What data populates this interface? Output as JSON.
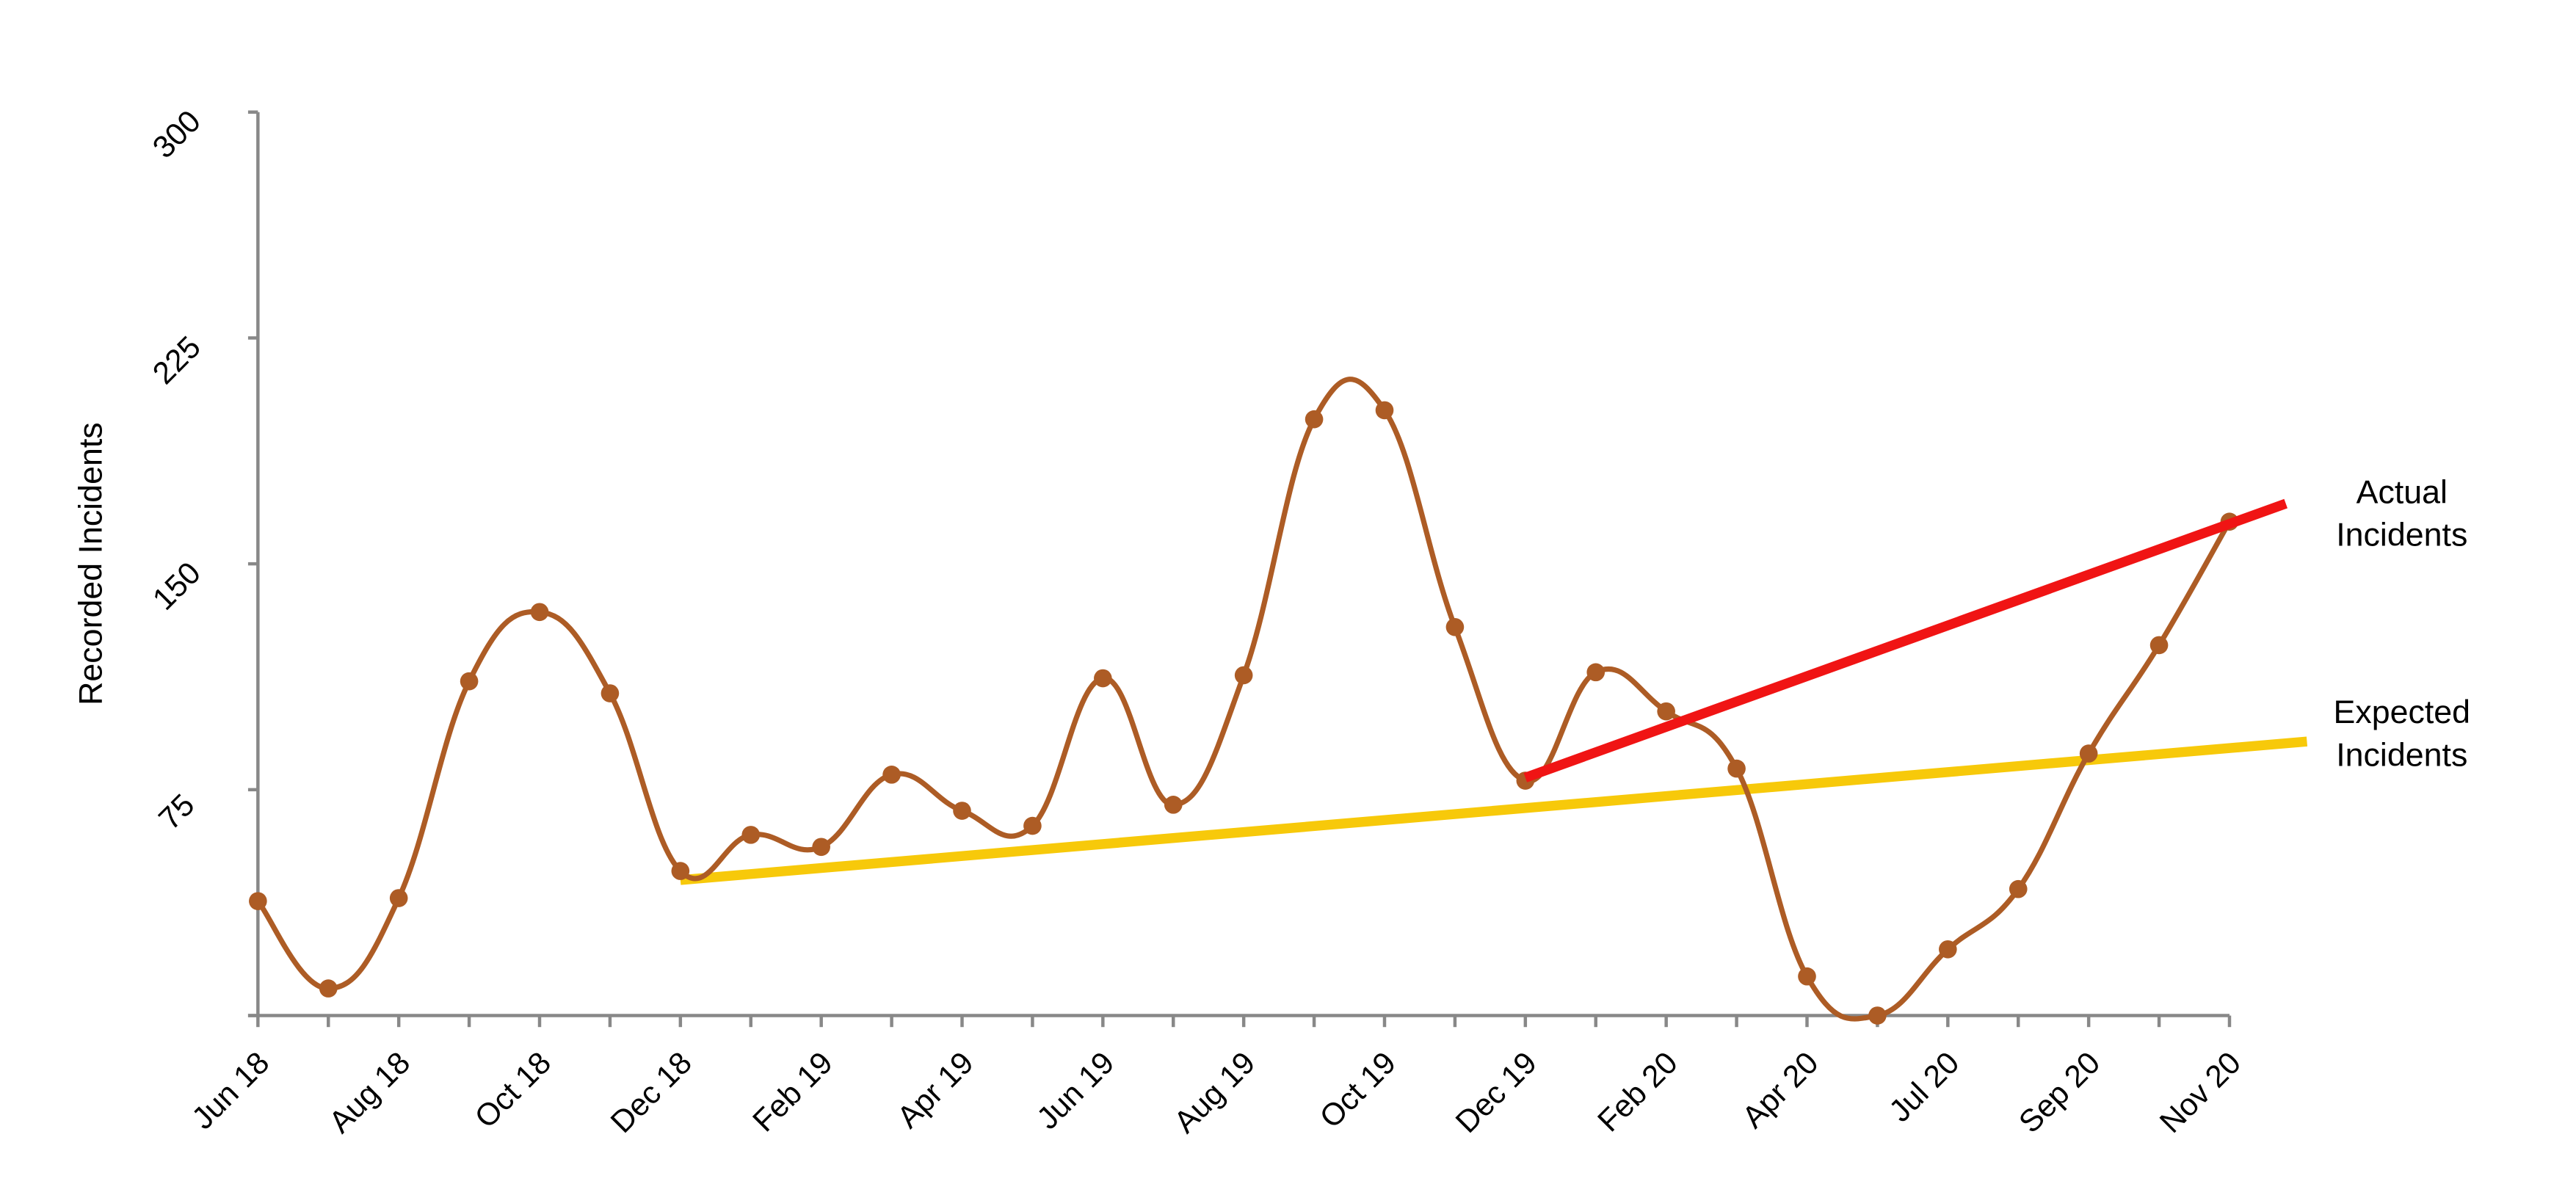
{
  "chart_data": {
    "type": "line",
    "title": "",
    "xlabel": "",
    "ylabel": "Recorded Incidents",
    "ylim": [
      0,
      300
    ],
    "yticks": [
      300,
      225,
      150,
      75
    ],
    "grid": false,
    "legend_position": "right (inline labels)",
    "categories": [
      "Jun 18",
      "",
      "Aug 18",
      "",
      "Oct 18",
      "",
      "Dec 18",
      "",
      "Feb 19",
      "",
      "Apr 19",
      "",
      "Jun 19",
      "",
      "Aug 19",
      "",
      "Oct 19",
      "",
      "Dec 19",
      "",
      "Feb 20",
      "",
      "Apr 20",
      "",
      "Jul 20",
      "",
      "Sep 20",
      "",
      "Nov 20"
    ],
    "series": [
      {
        "name": "Recorded Incidents",
        "type": "smooth-line-markers",
        "color": "#ad5c25",
        "values": [
          38,
          9,
          39,
          111,
          134,
          107,
          48,
          60,
          56,
          80,
          68,
          63,
          112,
          70,
          113,
          198,
          201,
          129,
          78,
          114,
          101,
          82,
          13,
          0,
          22,
          42,
          87,
          123,
          164
        ]
      },
      {
        "name": "Expected Incidents",
        "type": "trend-line",
        "color": "#f7c90a",
        "start": {
          "index": 6,
          "value": 45
        },
        "end": {
          "index": 29.1,
          "value": 91
        }
      },
      {
        "name": "Actual Incidents",
        "type": "trend-line",
        "color": "#f01414",
        "start": {
          "index": 18,
          "value": 79
        },
        "end": {
          "index": 28.8,
          "value": 170
        }
      }
    ],
    "annotations": [
      {
        "text": "Actual Incidents",
        "lines": [
          "Actual",
          "Incidents"
        ],
        "near_series": "Actual Incidents"
      },
      {
        "text": "Expected Incidents",
        "lines": [
          "Expected",
          "Incidents"
        ],
        "near_series": "Expected Incidents"
      }
    ]
  },
  "labels": {
    "y_axis_title": "Recorded Incidents",
    "legend_actual_line1": "Actual",
    "legend_actual_line2": "Incidents",
    "legend_expected_line1": "Expected",
    "legend_expected_line2": "Incidents"
  }
}
